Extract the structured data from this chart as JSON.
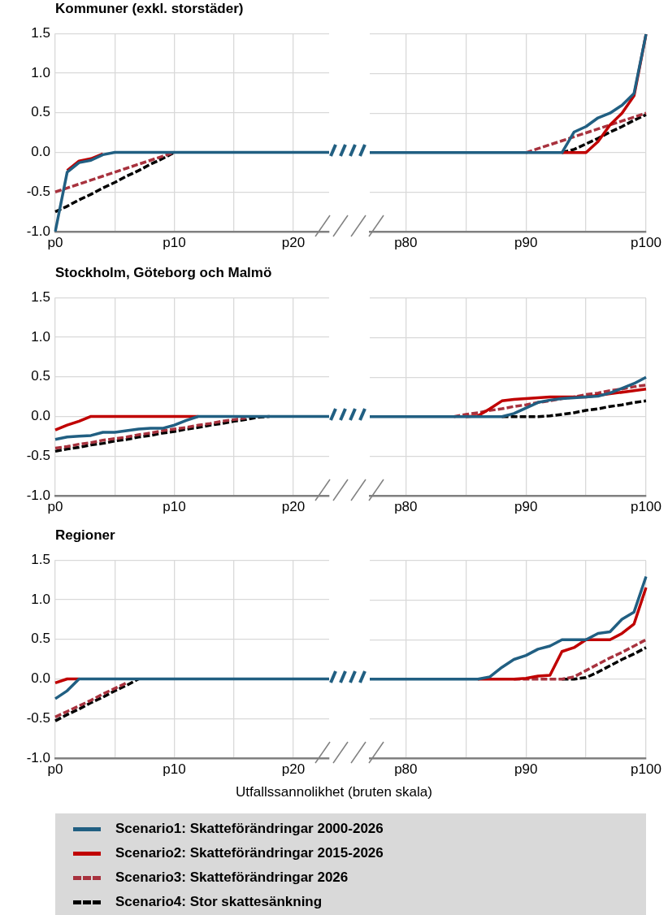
{
  "chart_data": [
    {
      "type": "line",
      "title": "Kommuner (exkl. storstäder)",
      "categories": [
        "p0",
        null,
        null,
        null,
        null,
        null,
        null,
        null,
        null,
        null,
        "p10",
        null,
        null,
        null,
        null,
        null,
        null,
        null,
        null,
        null,
        "p20",
        null,
        null,
        null
      ],
      "ylim": [
        -1,
        1.5
      ],
      "yticks": [
        {
          "value": -1,
          "label": "-1.0"
        },
        {
          "value": -0.5,
          "label": "-0.5"
        },
        {
          "value": 0,
          "label": "0.0"
        },
        {
          "value": 0.5,
          "label": "0.5"
        },
        {
          "value": 1,
          "label": "1.0"
        },
        {
          "value": 1.5,
          "label": "1.5"
        }
      ],
      "grid": true,
      "series": [
        {
          "color": "#215f82",
          "values": [
            -1,
            -0.25,
            -0.13,
            -0.1,
            -0.03,
            0,
            0,
            0,
            0,
            0,
            0,
            0,
            0,
            0,
            0,
            0,
            0,
            0,
            0,
            0,
            0,
            0,
            0,
            0
          ]
        },
        {
          "color": "#c00000",
          "values": [
            null,
            -0.23,
            -0.11,
            -0.08,
            -0.02,
            null,
            null,
            null,
            null,
            null,
            null,
            null,
            null,
            null,
            null,
            null,
            null,
            null,
            null,
            null,
            null,
            null,
            null,
            null
          ]
        },
        {
          "color": "#a8323e",
          "line_style": "dashed",
          "values": [
            -0.5,
            -0.45,
            -0.4,
            -0.35,
            -0.3,
            -0.25,
            -0.2,
            -0.15,
            -0.1,
            -0.05,
            0,
            null,
            null,
            null,
            null,
            null,
            null,
            null,
            null,
            null,
            null,
            null,
            null,
            null
          ]
        },
        {
          "color": "#000000",
          "line_style": "dashed",
          "values": [
            -0.75,
            -0.68,
            -0.6,
            -0.53,
            -0.45,
            -0.38,
            -0.3,
            -0.23,
            -0.15,
            -0.08,
            0,
            null,
            null,
            null,
            null,
            null,
            null,
            null,
            null,
            null,
            null,
            null,
            null,
            null
          ]
        }
      ]
    },
    {
      "type": "line",
      "categories": [
        null,
        null,
        null,
        "p80",
        null,
        null,
        null,
        null,
        null,
        null,
        null,
        null,
        null,
        "p90",
        null,
        null,
        null,
        null,
        null,
        null,
        null,
        null,
        null,
        "p100"
      ],
      "ylim": [
        -1,
        1.5
      ],
      "yticks": [
        -1,
        -0.5,
        0,
        0.5,
        1,
        1.5
      ],
      "grid": true,
      "tick_labels": "x",
      "series": [
        {
          "color": "#215f82",
          "values": [
            0,
            0,
            0,
            0,
            0,
            0,
            0,
            0,
            0,
            0,
            0,
            0,
            0,
            0,
            0,
            0,
            0,
            0.26,
            0.33,
            0.44,
            0.5,
            0.6,
            0.75,
            1.5
          ]
        },
        {
          "color": "#c00000",
          "values": [
            null,
            null,
            null,
            null,
            null,
            null,
            null,
            null,
            null,
            null,
            null,
            null,
            null,
            null,
            null,
            null,
            0,
            0,
            0,
            0.14,
            0.35,
            0.5,
            0.72,
            1.5
          ]
        },
        {
          "color": "#a8323e",
          "line_style": "dashed",
          "values": [
            null,
            null,
            null,
            null,
            null,
            null,
            null,
            null,
            null,
            null,
            null,
            null,
            null,
            0,
            0.05,
            0.1,
            0.15,
            0.2,
            0.25,
            0.3,
            0.35,
            0.4,
            0.45,
            0.5
          ]
        },
        {
          "color": "#000000",
          "line_style": "dashed",
          "values": [
            null,
            null,
            null,
            null,
            null,
            null,
            null,
            null,
            null,
            null,
            null,
            null,
            null,
            null,
            null,
            null,
            0,
            0.04,
            0.11,
            0.18,
            0.26,
            0.33,
            0.41,
            0.48
          ]
        }
      ]
    },
    {
      "type": "line",
      "title": "Stockholm, Göteborg och Malmö",
      "categories": [
        "p0",
        null,
        null,
        null,
        null,
        null,
        null,
        null,
        null,
        null,
        "p10",
        null,
        null,
        null,
        null,
        null,
        null,
        null,
        null,
        null,
        "p20",
        null,
        null,
        null
      ],
      "ylim": [
        -1,
        1.5
      ],
      "yticks": [
        {
          "value": -1,
          "label": "-1.0"
        },
        {
          "value": -0.5,
          "label": "-0.5"
        },
        {
          "value": 0,
          "label": "0.0"
        },
        {
          "value": 0.5,
          "label": "0.5"
        },
        {
          "value": 1,
          "label": "1.0"
        },
        {
          "value": 1.5,
          "label": "1.5"
        }
      ],
      "grid": true,
      "series": [
        {
          "color": "#215f82",
          "values": [
            -0.29,
            -0.26,
            -0.25,
            -0.24,
            -0.2,
            -0.2,
            -0.18,
            -0.16,
            -0.15,
            -0.15,
            -0.11,
            -0.05,
            0,
            0,
            0,
            0,
            0,
            0,
            0,
            0,
            0,
            0,
            0,
            0
          ]
        },
        {
          "color": "#c00000",
          "values": [
            -0.17,
            -0.11,
            -0.06,
            0,
            0,
            0,
            0,
            0,
            0,
            0,
            0,
            0,
            0,
            null,
            null,
            null,
            null,
            null,
            null,
            null,
            null,
            null,
            null,
            null
          ]
        },
        {
          "color": "#a8323e",
          "line_style": "dashed",
          "values": [
            -0.4,
            -0.38,
            -0.35,
            -0.33,
            -0.3,
            -0.28,
            -0.26,
            -0.23,
            -0.21,
            -0.18,
            -0.16,
            -0.14,
            -0.11,
            -0.09,
            -0.06,
            -0.04,
            -0.02,
            null,
            null,
            null,
            null,
            null,
            null,
            null
          ]
        },
        {
          "color": "#000000",
          "line_style": "dashed",
          "values": [
            -0.44,
            -0.41,
            -0.39,
            -0.36,
            -0.34,
            -0.31,
            -0.29,
            -0.26,
            -0.24,
            -0.21,
            -0.19,
            -0.16,
            -0.14,
            -0.11,
            -0.09,
            -0.06,
            -0.04,
            -0.01,
            0,
            null,
            null,
            null,
            null,
            null
          ]
        }
      ]
    },
    {
      "type": "line",
      "categories": [
        null,
        null,
        null,
        "p80",
        null,
        null,
        null,
        null,
        null,
        null,
        null,
        null,
        null,
        "p90",
        null,
        null,
        null,
        null,
        null,
        null,
        null,
        null,
        null,
        "p100"
      ],
      "ylim": [
        -1,
        1.5
      ],
      "yticks": [
        -1,
        -0.5,
        0,
        0.5,
        1,
        1.5
      ],
      "grid": true,
      "tick_labels": "x",
      "series": [
        {
          "color": "#215f82",
          "values": [
            0,
            0,
            0,
            0,
            0,
            0,
            0,
            0,
            0,
            0,
            0,
            0,
            0.04,
            0.11,
            0.18,
            0.21,
            0.23,
            0.24,
            0.25,
            0.26,
            0.3,
            0.36,
            0.42,
            0.5
          ]
        },
        {
          "color": "#c00000",
          "values": [
            null,
            null,
            null,
            null,
            null,
            null,
            null,
            null,
            0,
            0.01,
            0.1,
            0.2,
            0.22,
            0.23,
            0.24,
            0.25,
            0.25,
            0.25,
            0.25,
            0.27,
            0.29,
            0.31,
            0.33,
            0.35
          ]
        },
        {
          "color": "#a8323e",
          "line_style": "dashed",
          "values": [
            null,
            null,
            null,
            null,
            null,
            null,
            null,
            0,
            0.03,
            0.05,
            0.08,
            0.1,
            0.13,
            0.15,
            0.18,
            0.2,
            0.23,
            0.25,
            0.28,
            0.3,
            0.33,
            0.35,
            0.38,
            0.4
          ]
        },
        {
          "color": "#000000",
          "line_style": "dashed",
          "values": [
            null,
            null,
            null,
            null,
            null,
            null,
            null,
            null,
            null,
            null,
            null,
            0,
            0,
            0,
            0,
            0.01,
            0.03,
            0.05,
            0.08,
            0.1,
            0.13,
            0.15,
            0.18,
            0.2
          ]
        }
      ]
    },
    {
      "type": "line",
      "title": "Regioner",
      "xlabel": "Utfallssannolikhet (bruten skala)",
      "legend": "bottom",
      "categories": [
        "p0",
        null,
        null,
        null,
        null,
        null,
        null,
        null,
        null,
        null,
        "p10",
        null,
        null,
        null,
        null,
        null,
        null,
        null,
        null,
        null,
        "p20",
        null,
        null,
        null
      ],
      "ylim": [
        -1,
        1.5
      ],
      "yticks": [
        {
          "value": -1,
          "label": "-1.0"
        },
        {
          "value": -0.5,
          "label": "-0.5"
        },
        {
          "value": 0,
          "label": "0.0"
        },
        {
          "value": 0.5,
          "label": "0.5"
        },
        {
          "value": 1,
          "label": "1.0"
        },
        {
          "value": 1.5,
          "label": "1.5"
        }
      ],
      "grid": true,
      "series": [
        {
          "name": "Scenario1: Skatteförändringar 2000-2026",
          "color": "#215f82",
          "values": [
            -0.25,
            -0.15,
            0,
            0,
            0,
            0,
            0,
            0,
            0,
            0,
            0,
            0,
            0,
            0,
            0,
            0,
            0,
            0,
            0,
            0,
            0,
            0,
            0,
            0
          ]
        },
        {
          "name": "Scenario2: Skatteförändringar 2015-2026",
          "color": "#c00000",
          "values": [
            -0.05,
            0,
            0,
            null,
            null,
            null,
            null,
            null,
            null,
            null,
            null,
            null,
            null,
            null,
            null,
            null,
            null,
            null,
            null,
            null,
            null,
            null,
            null,
            null
          ]
        },
        {
          "name": "Scenario3: Skatteförändringar 2026",
          "color": "#a8323e",
          "line_style": "dashed",
          "values": [
            -0.48,
            -0.41,
            -0.34,
            -0.27,
            -0.19,
            -0.12,
            -0.05,
            null,
            null,
            null,
            null,
            null,
            null,
            null,
            null,
            null,
            null,
            null,
            null,
            null,
            null,
            null,
            null,
            null
          ]
        },
        {
          "name": "Scenario4: Stor skattesänkning",
          "color": "#000000",
          "line_style": "dashed",
          "values": [
            -0.53,
            -0.45,
            -0.38,
            -0.3,
            -0.23,
            -0.15,
            -0.08,
            0,
            null,
            null,
            null,
            null,
            null,
            null,
            null,
            null,
            null,
            null,
            null,
            null,
            null,
            null,
            null,
            null
          ]
        }
      ]
    },
    {
      "type": "line",
      "categories": [
        null,
        null,
        null,
        "p80",
        null,
        null,
        null,
        null,
        null,
        null,
        null,
        null,
        null,
        "p90",
        null,
        null,
        null,
        null,
        null,
        null,
        null,
        null,
        null,
        "p100"
      ],
      "ylim": [
        -1,
        1.5
      ],
      "yticks": [
        -1,
        -0.5,
        0,
        0.5,
        1,
        1.5
      ],
      "grid": true,
      "tick_labels": "x",
      "series": [
        {
          "color": "#215f82",
          "values": [
            0,
            0,
            0,
            0,
            0,
            0,
            0,
            0,
            0,
            0,
            0.03,
            0.15,
            0.25,
            0.3,
            0.38,
            0.42,
            0.5,
            0.5,
            0.5,
            0.58,
            0.6,
            0.76,
            0.85,
            1.3
          ]
        },
        {
          "color": "#c00000",
          "values": [
            null,
            null,
            null,
            null,
            null,
            null,
            null,
            null,
            null,
            0,
            0,
            0,
            0,
            0.01,
            0.04,
            0.05,
            0.35,
            0.4,
            0.5,
            0.5,
            0.5,
            0.58,
            0.7,
            1.16
          ]
        },
        {
          "color": "#a8323e",
          "line_style": "dashed",
          "values": [
            null,
            null,
            null,
            null,
            null,
            null,
            null,
            null,
            null,
            null,
            null,
            null,
            0,
            0,
            0,
            0,
            0,
            0.03,
            0.11,
            0.19,
            0.27,
            0.34,
            0.42,
            0.5
          ]
        },
        {
          "color": "#000000",
          "line_style": "dashed",
          "values": [
            null,
            null,
            null,
            null,
            null,
            null,
            null,
            null,
            null,
            null,
            null,
            null,
            null,
            null,
            null,
            null,
            0,
            0,
            0.02,
            0.09,
            0.17,
            0.25,
            0.32,
            0.4
          ]
        }
      ]
    }
  ]
}
